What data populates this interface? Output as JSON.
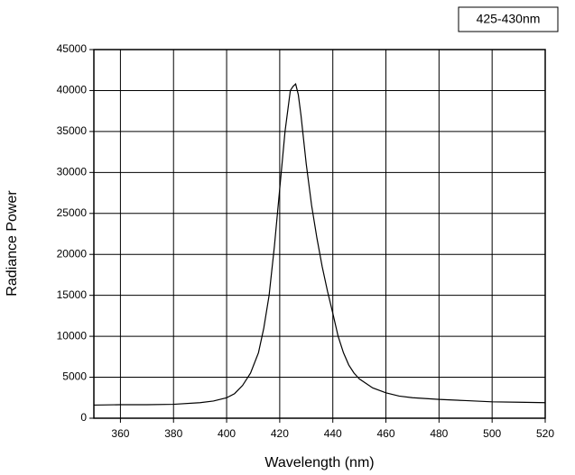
{
  "chart_data": {
    "type": "line",
    "x_label": "Wavelength (nm)",
    "y_label": "Radiance Power",
    "x": [
      350,
      360,
      370,
      380,
      390,
      395,
      400,
      403,
      406,
      409,
      412,
      414,
      416,
      418,
      420,
      422,
      424,
      425,
      426,
      427,
      428,
      430,
      432,
      434,
      436,
      438,
      440,
      442,
      444,
      446,
      448,
      450,
      455,
      460,
      465,
      470,
      480,
      490,
      500,
      510,
      520
    ],
    "series": [
      {
        "name": "425-430nm",
        "color": "#000000",
        "values": [
          1600,
          1650,
          1650,
          1700,
          1900,
          2100,
          2500,
          3000,
          4000,
          5500,
          8000,
          11000,
          15000,
          21000,
          28000,
          35000,
          40000,
          40500,
          40800,
          39500,
          37000,
          31000,
          26000,
          22000,
          18500,
          15500,
          12800,
          10000,
          8000,
          6500,
          5500,
          4800,
          3700,
          3100,
          2700,
          2500,
          2300,
          2150,
          2000,
          1950,
          1900
        ]
      }
    ],
    "xlim": [
      350,
      520
    ],
    "xticks": [
      360,
      380,
      400,
      420,
      440,
      460,
      480,
      500,
      520
    ],
    "ylim": [
      0,
      45000
    ],
    "yticks": [
      0,
      5000,
      10000,
      15000,
      20000,
      25000,
      30000,
      35000,
      40000,
      45000
    ],
    "grid": true
  }
}
